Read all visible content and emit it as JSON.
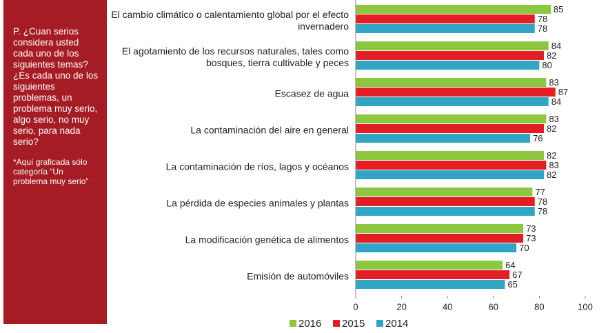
{
  "sidebar": {
    "question": "P. ¿Cuan serios considera usted cada uno de los siguientes temas? ¿Es cada uno de los siguientes problemas, un problema muy serio, algo serio, no muy serio, para nada serio?",
    "note": "*Aquí graficada sólo categoría “Un problema muy serio”"
  },
  "chart_data": {
    "type": "hbar",
    "categories": [
      "El cambio climático o calentamiento global por el efecto invernadero",
      "El agotamiento de los recursos naturales, tales como bosques, tierra cultivable y peces",
      "Escasez de agua",
      "La contaminación del aire en general",
      "La contaminación de ríos, lagos y océanos",
      "La pérdida de especies animales y plantas",
      "La modificación genética de alimentos",
      "Emisión de automóviles"
    ],
    "series": [
      {
        "name": "2016",
        "color": "#8dc63f",
        "values": [
          85,
          84,
          83,
          83,
          82,
          77,
          73,
          64
        ]
      },
      {
        "name": "2015",
        "color": "#e31e24",
        "values": [
          78,
          82,
          87,
          82,
          83,
          78,
          73,
          67
        ]
      },
      {
        "name": "2014",
        "color": "#31a6c4",
        "values": [
          78,
          80,
          84,
          76,
          82,
          78,
          70,
          65
        ]
      }
    ],
    "xlim": [
      0,
      100
    ],
    "xticks": [
      0,
      20,
      40,
      60,
      80,
      100
    ]
  }
}
